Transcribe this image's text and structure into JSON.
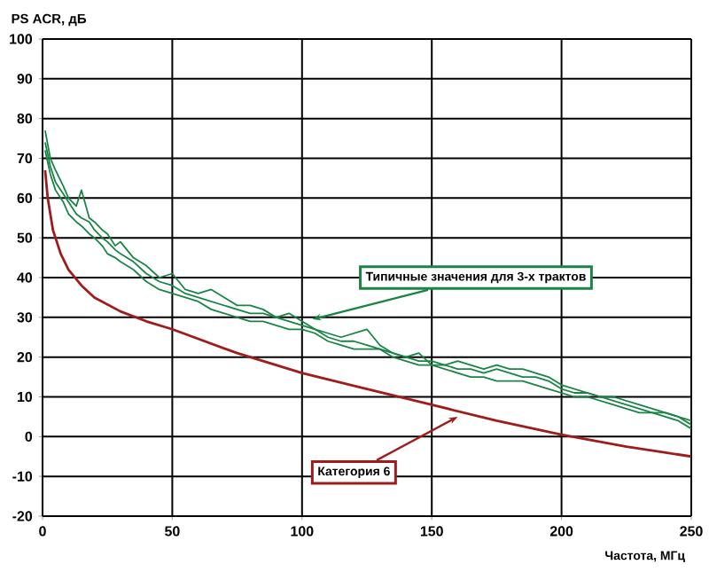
{
  "chart_data": {
    "type": "line",
    "xlabel": "Частота, МГц",
    "ylabel": "PS ACR, дБ",
    "xlim": [
      0,
      250
    ],
    "xticks": [
      0,
      50,
      100,
      150,
      200,
      250
    ],
    "ylim": [
      -20,
      100
    ],
    "yticks": [
      -20,
      -10,
      0,
      10,
      20,
      30,
      40,
      50,
      60,
      70,
      80,
      90,
      100
    ],
    "grid": true,
    "marker": "none",
    "line_style": "solid",
    "series": [
      {
        "color": "#a01c1c",
        "x": [
          1,
          2,
          4,
          7,
          10,
          15,
          20,
          30,
          40,
          50,
          75,
          100,
          125,
          150,
          175,
          200,
          225,
          250
        ],
        "values": [
          67,
          60,
          52,
          46,
          42,
          38,
          35,
          31.5,
          29,
          27,
          21,
          16,
          12,
          8,
          4,
          0.5,
          -2.5,
          -5
        ]
      },
      {
        "color": "#1a8446",
        "x": [
          1,
          3,
          5,
          8,
          10,
          13,
          15,
          18,
          20,
          23,
          25,
          28,
          30,
          35,
          40,
          45,
          50,
          55,
          60,
          65,
          70,
          75,
          80,
          85,
          90,
          95,
          100,
          105,
          110,
          115,
          120,
          125,
          130,
          135,
          140,
          145,
          150,
          155,
          160,
          165,
          170,
          175,
          180,
          185,
          190,
          195,
          200,
          205,
          210,
          215,
          220,
          225,
          230,
          235,
          240,
          245,
          250
        ],
        "values": [
          77,
          70,
          67,
          63,
          60,
          58,
          62,
          55,
          54,
          52,
          51,
          48,
          49,
          45,
          43,
          40,
          41,
          37,
          36,
          37,
          35,
          33,
          33,
          32,
          30,
          31,
          29,
          27,
          26,
          25,
          26,
          27,
          23,
          21,
          20,
          21,
          18,
          18,
          19,
          18,
          17,
          18,
          17,
          17,
          16,
          15,
          13,
          12,
          11,
          10,
          10,
          9,
          8,
          7,
          6,
          5,
          4
        ]
      },
      {
        "color": "#1a8446",
        "x": [
          1,
          3,
          5,
          8,
          10,
          13,
          15,
          18,
          20,
          23,
          25,
          28,
          30,
          35,
          40,
          45,
          50,
          55,
          60,
          65,
          70,
          75,
          80,
          85,
          90,
          95,
          100,
          105,
          110,
          115,
          120,
          125,
          130,
          135,
          140,
          145,
          150,
          155,
          160,
          165,
          170,
          175,
          180,
          185,
          190,
          195,
          200,
          205,
          210,
          215,
          220,
          225,
          230,
          235,
          240,
          245,
          250
        ],
        "values": [
          74,
          68,
          64,
          61,
          59,
          56,
          55,
          54,
          52,
          50,
          49,
          47,
          46,
          44,
          41,
          39,
          38,
          36,
          35,
          34,
          33,
          32,
          31,
          31,
          30,
          29,
          28,
          27,
          25,
          24,
          24,
          23,
          22,
          21,
          20,
          19,
          19,
          18,
          17,
          17,
          16,
          17,
          16,
          15,
          15,
          14,
          12,
          11,
          11,
          10,
          9,
          8,
          7,
          6,
          6,
          5,
          3
        ]
      },
      {
        "color": "#1a8446",
        "x": [
          1,
          3,
          5,
          8,
          10,
          13,
          15,
          18,
          20,
          23,
          25,
          28,
          30,
          35,
          40,
          45,
          50,
          55,
          60,
          65,
          70,
          75,
          80,
          85,
          90,
          95,
          100,
          105,
          110,
          115,
          120,
          125,
          130,
          135,
          140,
          145,
          150,
          155,
          160,
          165,
          170,
          175,
          180,
          185,
          190,
          195,
          200,
          205,
          210,
          215,
          220,
          225,
          230,
          235,
          240,
          245,
          250
        ],
        "values": [
          72,
          66,
          62,
          59,
          56,
          54,
          53,
          51,
          50,
          48,
          46,
          45,
          44,
          42,
          39,
          37,
          36,
          35,
          34,
          32,
          31,
          30,
          29,
          29,
          28,
          27,
          27,
          26,
          24,
          23,
          22,
          22,
          22,
          20,
          19,
          18,
          18,
          17,
          16,
          15,
          15,
          14,
          14,
          14,
          13,
          12,
          11,
          10,
          10,
          9,
          8,
          7,
          6,
          6,
          5,
          4,
          2
        ]
      }
    ],
    "annotations": [
      {
        "text": "Категория  6",
        "x": 160,
        "y": 5
      },
      {
        "text": "Типичные значения для 3-х трактов",
        "x": 104,
        "y": 29.5
      }
    ]
  }
}
